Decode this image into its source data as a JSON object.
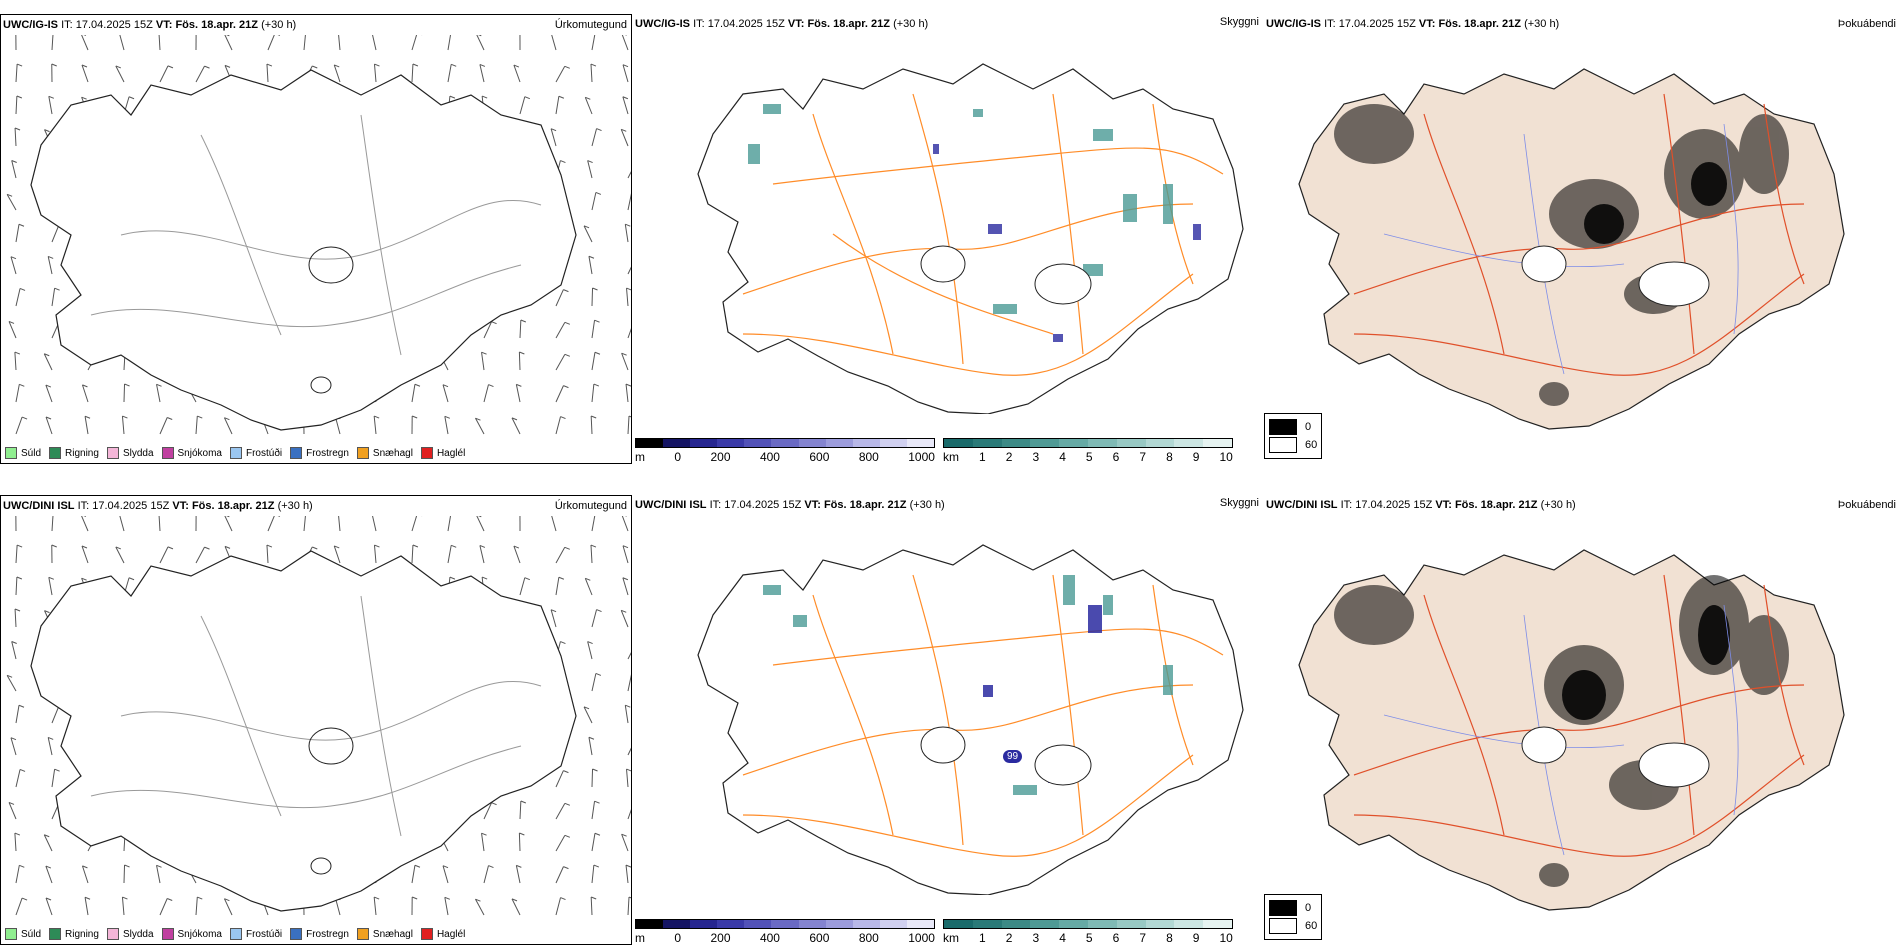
{
  "rows": [
    {
      "precip": {
        "model": "UWC/IG-IS",
        "it_label": "IT:",
        "it_value": "17.04.2025 15Z",
        "vt_label": "VT:",
        "vt_value": "Fös. 18.apr. 21Z",
        "lead": "(+30 h)",
        "type_label": "Úrkomutegund"
      },
      "vis": {
        "model": "UWC/IG-IS",
        "it_label": "IT:",
        "it_value": "17.04.2025 15Z",
        "vt_label": "VT:",
        "vt_value": "Fös. 18.apr. 21Z",
        "lead": "(+30 h)",
        "type_label": "Skyggni"
      },
      "fog": {
        "model": "UWC/IG-IS",
        "it_label": "IT:",
        "it_value": "17.04.2025 15Z",
        "vt_label": "VT:",
        "vt_value": "Fös. 18.apr. 21Z",
        "lead": "(+30 h)",
        "type_label": "Þokuábendi"
      },
      "marker": ""
    },
    {
      "precip": {
        "model": "UWC/DINI ISL",
        "it_label": "IT:",
        "it_value": "17.04.2025 15Z",
        "vt_label": "VT:",
        "vt_value": "Fös. 18.apr. 21Z",
        "lead": "(+30 h)",
        "type_label": "Úrkomutegund"
      },
      "vis": {
        "model": "UWC/DINI ISL",
        "it_label": "IT:",
        "it_value": "17.04.2025 15Z",
        "vt_label": "VT:",
        "vt_value": "Fös. 18.apr. 21Z",
        "lead": "(+30 h)",
        "type_label": "Skyggni"
      },
      "fog": {
        "model": "UWC/DINI ISL",
        "it_label": "IT:",
        "it_value": "17.04.2025 15Z",
        "vt_label": "VT:",
        "vt_value": "Fös. 18.apr. 21Z",
        "lead": "(+30 h)",
        "type_label": "Þokuábendi"
      },
      "marker": "99"
    }
  ],
  "precip_legend": [
    {
      "label": "Súld",
      "color": "#90ee90"
    },
    {
      "label": "Rigning",
      "color": "#2e8b57"
    },
    {
      "label": "Slydda",
      "color": "#f4b6d8"
    },
    {
      "label": "Snjókoma",
      "color": "#c040a0"
    },
    {
      "label": "Frostúði",
      "color": "#9ac6f0"
    },
    {
      "label": "Frostregn",
      "color": "#3a70c0"
    },
    {
      "label": "Snæhagl",
      "color": "#f0a020"
    },
    {
      "label": "Haglél",
      "color": "#e02020"
    }
  ],
  "cbar_m": {
    "unit": "m",
    "ticks": [
      "0",
      "200",
      "400",
      "600",
      "800",
      "1000"
    ],
    "colors": [
      "#000000",
      "#141463",
      "#262690",
      "#3a3aa8",
      "#5252b8",
      "#6a6ac4",
      "#8484d0",
      "#9c9cdc",
      "#b8b8e8",
      "#d0d0f0",
      "#e8e8f8"
    ]
  },
  "cbar_km": {
    "unit": "km",
    "ticks": [
      "1",
      "2",
      "3",
      "4",
      "5",
      "6",
      "7",
      "8",
      "9",
      "10"
    ],
    "colors": [
      "#1a6b6b",
      "#2a7a78",
      "#3c8a86",
      "#4f9a95",
      "#66aaa5",
      "#7fbab5",
      "#98c9c4",
      "#b2d8d4",
      "#cce6e3",
      "#e6f3f1"
    ]
  },
  "fog_legend": [
    {
      "label": "0",
      "color": "#000000"
    },
    {
      "label": "60",
      "color": "#ffffff"
    }
  ]
}
